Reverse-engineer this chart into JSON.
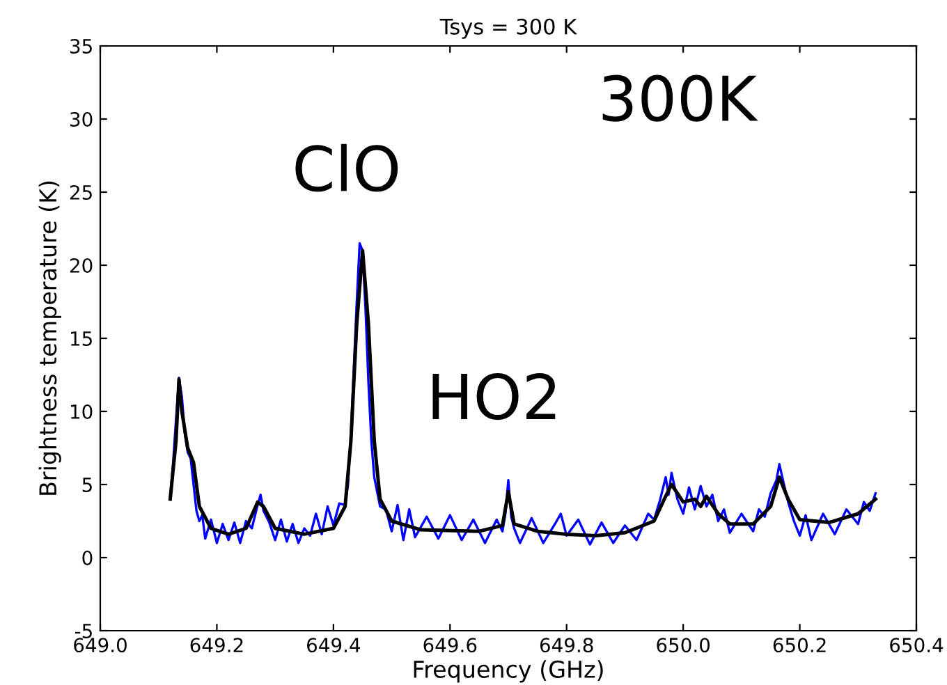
{
  "chart_data": {
    "type": "line",
    "title": "Tsys = 300 K",
    "xlabel": "Frequency (GHz)",
    "ylabel": "Brightness temperature (K)",
    "xlim": [
      649.0,
      650.4
    ],
    "xticks": [
      {
        "value": 649.0,
        "label": "649.0"
      },
      649.2,
      649.4,
      649.6,
      649.8,
      {
        "value": 650.0,
        "label": "650.0"
      },
      650.2,
      650.4
    ],
    "ylim": [
      -5,
      35
    ],
    "yticks": [
      -5,
      0,
      5,
      10,
      15,
      20,
      25,
      30,
      35
    ],
    "grid": false,
    "legend": false,
    "line_style": "solid",
    "marker": "none",
    "series": [
      {
        "color": "#0000ff",
        "x": [
          649.12,
          649.125,
          649.13,
          649.135,
          649.14,
          649.145,
          649.15,
          649.155,
          649.16,
          649.165,
          649.17,
          649.175,
          649.18,
          649.19,
          649.2,
          649.21,
          649.22,
          649.23,
          649.24,
          649.25,
          649.26,
          649.27,
          649.275,
          649.28,
          649.29,
          649.3,
          649.31,
          649.32,
          649.33,
          649.34,
          649.35,
          649.36,
          649.37,
          649.38,
          649.39,
          649.4,
          649.41,
          649.42,
          649.425,
          649.43,
          649.435,
          649.44,
          649.445,
          649.45,
          649.455,
          649.46,
          649.465,
          649.47,
          649.48,
          649.49,
          649.5,
          649.51,
          649.52,
          649.53,
          649.54,
          649.56,
          649.58,
          649.6,
          649.62,
          649.64,
          649.66,
          649.68,
          649.69,
          649.695,
          649.7,
          649.705,
          649.71,
          649.72,
          649.74,
          649.76,
          649.78,
          649.79,
          649.8,
          649.82,
          649.84,
          649.86,
          649.88,
          649.9,
          649.92,
          649.94,
          649.95,
          649.96,
          649.97,
          649.975,
          649.98,
          649.99,
          650.0,
          650.01,
          650.02,
          650.03,
          650.04,
          650.05,
          650.06,
          650.07,
          650.08,
          650.1,
          650.12,
          650.13,
          650.14,
          650.15,
          650.16,
          650.165,
          650.17,
          650.18,
          650.19,
          650.2,
          650.21,
          650.22,
          650.24,
          650.26,
          650.28,
          650.3,
          650.31,
          650.32,
          650.33
        ],
        "values": [
          4.2,
          6.5,
          9.5,
          12.3,
          11.0,
          8.5,
          7.2,
          6.8,
          5.0,
          3.2,
          2.5,
          2.9,
          1.3,
          2.6,
          1.0,
          2.3,
          1.2,
          2.4,
          1.0,
          2.5,
          2.0,
          3.6,
          4.3,
          3.2,
          2.4,
          1.2,
          2.6,
          1.1,
          2.3,
          1.0,
          2.0,
          1.5,
          3.0,
          1.6,
          3.5,
          2.2,
          3.7,
          3.6,
          5.0,
          8.5,
          13.0,
          17.5,
          21.5,
          21.0,
          17.0,
          12.0,
          8.0,
          5.5,
          3.5,
          3.3,
          1.8,
          3.6,
          1.2,
          3.3,
          1.4,
          2.8,
          1.3,
          2.9,
          1.2,
          2.6,
          1.0,
          2.6,
          1.8,
          3.0,
          5.3,
          2.8,
          2.0,
          1.0,
          2.7,
          1.0,
          2.3,
          3.0,
          1.5,
          2.6,
          0.9,
          2.4,
          1.0,
          2.2,
          1.2,
          3.0,
          2.6,
          3.9,
          5.5,
          4.3,
          5.8,
          4.0,
          3.0,
          4.8,
          3.3,
          4.9,
          3.5,
          4.3,
          2.5,
          3.3,
          1.7,
          3.0,
          1.8,
          3.3,
          2.8,
          4.4,
          5.3,
          6.4,
          5.5,
          3.8,
          2.5,
          1.5,
          2.9,
          1.2,
          3.0,
          1.6,
          3.3,
          2.3,
          3.8,
          3.2,
          4.4
        ]
      },
      {
        "color": "#000000",
        "x": [
          649.12,
          649.13,
          649.135,
          649.14,
          649.15,
          649.16,
          649.17,
          649.19,
          649.22,
          649.25,
          649.27,
          649.28,
          649.3,
          649.35,
          649.4,
          649.42,
          649.43,
          649.44,
          649.45,
          649.46,
          649.47,
          649.48,
          649.5,
          649.55,
          649.65,
          649.69,
          649.7,
          649.71,
          649.75,
          649.8,
          649.85,
          649.9,
          649.95,
          649.97,
          649.98,
          650.0,
          650.02,
          650.03,
          650.04,
          650.06,
          650.08,
          650.12,
          650.15,
          650.165,
          650.18,
          650.2,
          650.25,
          650.3,
          650.33
        ],
        "values": [
          4.0,
          8.0,
          12.2,
          10.0,
          7.5,
          6.5,
          3.5,
          2.0,
          1.6,
          2.0,
          3.8,
          3.5,
          2.0,
          1.6,
          2.0,
          3.5,
          8.0,
          16.0,
          21.0,
          16.0,
          8.0,
          4.0,
          2.5,
          1.9,
          1.8,
          2.2,
          4.5,
          2.3,
          1.8,
          1.6,
          1.5,
          1.7,
          2.5,
          4.2,
          5.0,
          3.8,
          4.0,
          3.5,
          4.2,
          3.0,
          2.3,
          2.3,
          3.5,
          5.5,
          4.0,
          2.6,
          2.4,
          3.0,
          4.0
        ]
      }
    ],
    "annotations": [
      "ClO",
      "HO2",
      "300K"
    ]
  }
}
